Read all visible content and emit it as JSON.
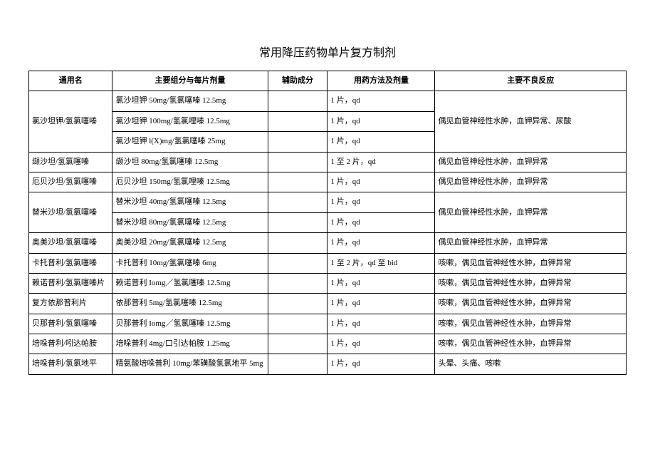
{
  "title": "常用降压药物单片复方制剂",
  "headers": {
    "name": "通用名",
    "ingredient": "主要组分与每片剂量",
    "aux": "辅助成分",
    "dosage": "用药方法及剂量",
    "reaction": "主要不良反应"
  },
  "rows": {
    "r0": {
      "name": "氯沙坦钾/氢氯噻嗪",
      "ingredient": "氯沙坦钾 50mg/氢氯噻嗪 12.5mg",
      "aux": "",
      "dosage": "1 片，qd",
      "reaction": "偶见血管神经性水肿，血钾异常、尿酸"
    },
    "r1": {
      "ingredient": "氯沙坦钾 100mg/氢氯哩嗪 12.5mg",
      "aux": "",
      "dosage": "1 片，qd",
      "reaction": ""
    },
    "r2": {
      "ingredient": "氯沙坦钾 l(X)mg/氢氯噻嗪 25mg",
      "aux": "",
      "dosage": "1 片，qd",
      "reaction": ""
    },
    "r3": {
      "name": "缬沙坦/氢氯噻嗪",
      "ingredient": "缬沙坦 80mg/氢氯噻嗪 12.5mg",
      "aux": "",
      "dosage": "1 至 2 片，qd",
      "reaction": "偶见血管神经性水肿，血钾异常"
    },
    "r4": {
      "name": "厄贝沙坦/氢氯噻嗪",
      "ingredient": "厄贝沙坦 150mg/氢氯哩嗪 12.5mg",
      "aux": "",
      "dosage": "1 片，qd",
      "reaction": "偶见血管神经性水肿，血钾异常"
    },
    "r5": {
      "name": "替米沙坦/氢氯噻嗪",
      "ingredient": "替米沙坦 40mg/氢氯噻嗪 12.5mg",
      "aux": "",
      "dosage": "1 片，qd",
      "reaction": "偶见血管神经性水肿，血钾异常"
    },
    "r6": {
      "ingredient": "替米沙坦 80mg/氢氯噻嗪 12.5mg",
      "aux": "",
      "dosage": "1 片，qd",
      "reaction": ""
    },
    "r7": {
      "name": "奥美沙坦/氢氯噻嗪",
      "ingredient": "奥美沙坦 20mg/氢氯噻嗪 12.5mg",
      "aux": "",
      "dosage": "1 片，qd",
      "reaction": "偶见血管神经性水肿，血钾异常"
    },
    "r8": {
      "name": "卡托普利/氢氯噻嗪",
      "ingredient": "卡托普利 10mg/氢氯噻嗪 6mg",
      "aux": "",
      "dosage": "1 至 2 片，qd 至 bid",
      "reaction": "咳嗽，偶见血管神经性水肿，血钾异常"
    },
    "r9": {
      "name": "赖诺普利/氢氯噻嗪片",
      "ingredient": "赖诺普利 Iomg／氢氯噻嗪 12.5mg",
      "aux": "",
      "dosage": "1 片，qd",
      "reaction": "咳嗽，偶见血管神经性水肿，血钾异常"
    },
    "r10": {
      "name": "复方依那普利片",
      "ingredient": "依那普利 5mg/氢氯噻嗪 12.5mg",
      "aux": "",
      "dosage": "1 片，qd",
      "reaction": "咳嗽，偶见血管神经性水肿，血钾异常"
    },
    "r11": {
      "name": "贝那普利/氢氯噻嗪",
      "ingredient": "贝那普利 Iomg／氢氯噻嗪 12.5mg",
      "aux": "",
      "dosage": "1 片，qd",
      "reaction": "咳嗽，偶见血管神经性水肿，血钾异常"
    },
    "r12": {
      "name": "培哚普利/吲达帕胺",
      "ingredient": "培哚普利 4mg/口引达帕胺 1.25mg",
      "aux": "",
      "dosage": "1 片，qd",
      "reaction": "咳嗽，偶见血管神经性水肿，血钾异常"
    },
    "r13": {
      "name": "培哚普利/氢氯地平",
      "ingredient": "精氨酸培哚普利 10mg/苯磺酸氢氯地平 5mg",
      "aux": "",
      "dosage": "1 片，qd",
      "reaction": "头晕、头痛、咳嗽"
    }
  },
  "style": {
    "background_color": "#ffffff",
    "text_color": "#000000",
    "border_color": "#000000",
    "font_family": "SimSun",
    "title_fontsize": 16,
    "cell_fontsize": 11
  }
}
